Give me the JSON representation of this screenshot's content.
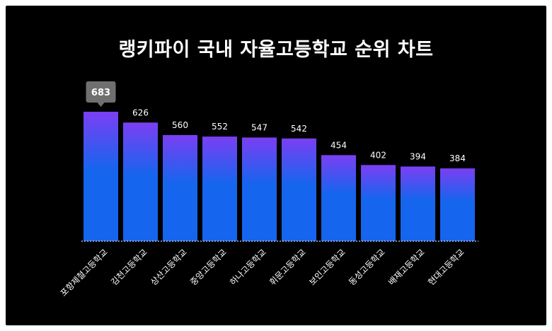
{
  "chart_data": {
    "type": "bar",
    "title": "랭키파이 국내 자율고등학교 순위 차트",
    "categories": [
      "포항제철고등학교",
      "김천고등학교",
      "상산고등학교",
      "중앙고등학교",
      "하나고등학교",
      "휘문고등학교",
      "보인고등학교",
      "동성고등학교",
      "배재고등학교",
      "현대고등학교"
    ],
    "values": [
      683,
      626,
      560,
      552,
      547,
      542,
      454,
      402,
      394,
      384
    ],
    "ylim": [
      0,
      683
    ],
    "highlighted_value": "683",
    "grid": false,
    "colors": {
      "bar_top": "#7b3ff2",
      "bar_bottom": "#1565ee",
      "background": "#000000",
      "tooltip": "#6f6f6f"
    }
  }
}
